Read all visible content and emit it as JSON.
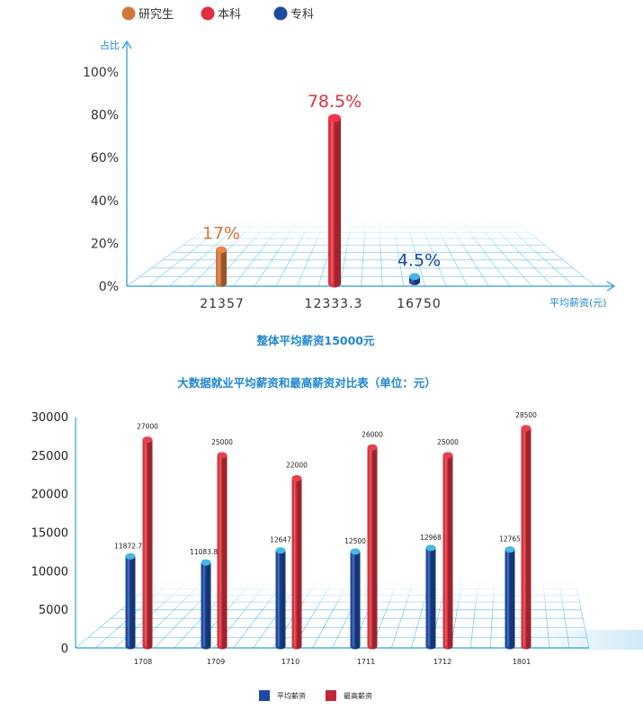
{
  "colors": {
    "accent": "#2a9fe0",
    "orange": "#d2773a",
    "red": "#e03040",
    "blue": "#1d4aa0",
    "cap_blue": "#46b7e6",
    "title_blue": "#1e86d2"
  },
  "chart_data": [
    {
      "type": "bar",
      "ylabel": "占比",
      "xlabel": "平均薪资(元)",
      "title": "整体平均薪资15000元",
      "ylim": [
        0,
        100
      ],
      "yticks": [
        "0%",
        "20%",
        "40%",
        "60%",
        "80%",
        "100%"
      ],
      "legend": [
        {
          "name": "研究生",
          "color": "#d2773a"
        },
        {
          "name": "本科",
          "color": "#e03040"
        },
        {
          "name": "专科",
          "color": "#1d4aa0"
        }
      ],
      "legend_position": "top",
      "grid": true,
      "bars": [
        {
          "category": "21357",
          "series": "研究生",
          "value": 17,
          "label": "17%",
          "color": "#d2773a"
        },
        {
          "category": "12333.3",
          "series": "本科",
          "value": 78.5,
          "label": "78.5%",
          "color": "#e03040"
        },
        {
          "category": "16750",
          "series": "专科",
          "value": 4.5,
          "label": "4.5%",
          "color": "#1d4aa0"
        }
      ]
    },
    {
      "type": "bar",
      "title": "大数据就业平均薪资和最高薪资对比表（单位：元）",
      "categories": [
        "1708",
        "1709",
        "1710",
        "1711",
        "1712",
        "1801"
      ],
      "ylim": [
        0,
        30000
      ],
      "yticks": [
        "0",
        "5000",
        "10000",
        "15000",
        "20000",
        "25000",
        "30000"
      ],
      "grid": true,
      "legend_position": "bottom",
      "series": [
        {
          "name": "平均薪资",
          "color": "#1d4aa0",
          "values": [
            11872.73,
            11083.88,
            12647,
            12500,
            12968,
            12765
          ],
          "labels": [
            "11872.73",
            "11083.88",
            "12647",
            "12500",
            "12968",
            "12765"
          ]
        },
        {
          "name": "最高薪资",
          "color": "#c0283a",
          "values": [
            27000,
            25000,
            22000,
            26000,
            25000,
            28500
          ],
          "labels": [
            "27000",
            "25000",
            "22000",
            "26000",
            "25000",
            "28500"
          ]
        }
      ]
    }
  ]
}
